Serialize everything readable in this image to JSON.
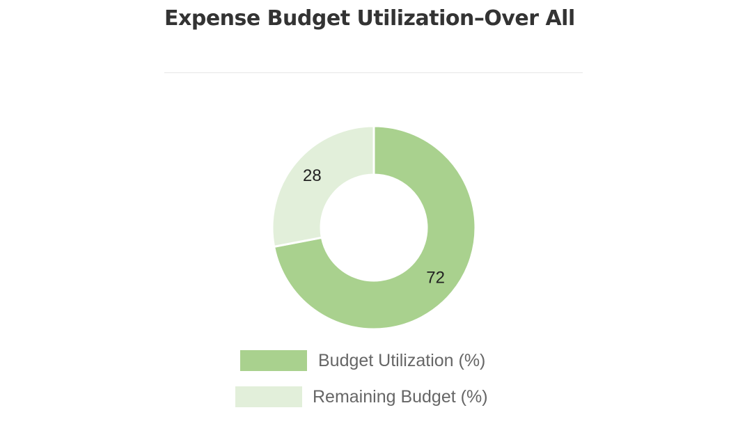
{
  "header": {
    "title": "Expense Budget Utilization–Over All"
  },
  "colors": {
    "utilization": "#a9d18e",
    "remaining": "#e2efda",
    "title": "#333333",
    "legend_text": "#666666"
  },
  "chart_data": {
    "type": "pie",
    "variant": "doughnut",
    "title": "Expense Budget Utilization–Over All",
    "series": [
      {
        "name": "Budget Utilization (%)",
        "value": 72,
        "color": "#a9d18e"
      },
      {
        "name": "Remaining Budget (%)",
        "value": 28,
        "color": "#e2efda"
      }
    ],
    "data_labels": [
      "72",
      "28"
    ],
    "legend_position": "bottom",
    "start_angle": "top, clockwise"
  },
  "legend": {
    "items": [
      {
        "label": "Budget Utilization (%)",
        "color": "#a9d18e"
      },
      {
        "label": "Remaining Budget (%)",
        "color": "#e2efda"
      }
    ]
  }
}
